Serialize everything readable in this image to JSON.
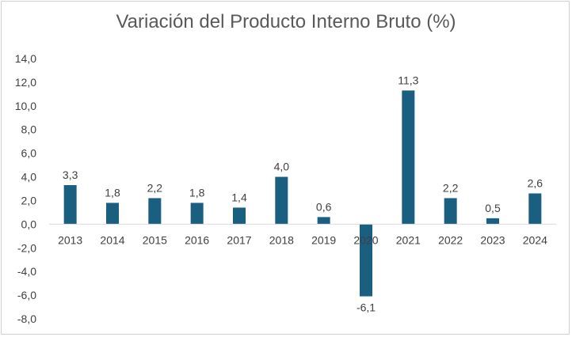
{
  "chart_data": {
    "type": "bar",
    "title": "Variación del Producto Interno Bruto (%)",
    "categories": [
      "2013",
      "2014",
      "2015",
      "2016",
      "2017",
      "2018",
      "2019",
      "2020",
      "2021",
      "2022",
      "2023",
      "2024"
    ],
    "values": [
      3.3,
      1.8,
      2.2,
      1.8,
      1.4,
      4.0,
      0.6,
      -6.1,
      11.3,
      2.2,
      0.5,
      2.6
    ],
    "data_labels": [
      "3,3",
      "1,8",
      "2,2",
      "1,8",
      "1,4",
      "4,0",
      "0,6",
      "-6,1",
      "11,3",
      "2,2",
      "0,5",
      "2,6"
    ],
    "ylim": [
      -8,
      14
    ],
    "yticks": [
      14,
      12,
      10,
      8,
      6,
      4,
      2,
      0,
      -2,
      -4,
      -6,
      -8
    ],
    "ytick_labels": [
      "14,0",
      "12,0",
      "10,0",
      "8,0",
      "6,0",
      "4,0",
      "2,0",
      "0,0",
      "-2,0",
      "-4,0",
      "-6,0",
      "-8,0"
    ],
    "grid": false,
    "legend": "none",
    "bar_color": "#1a5f80",
    "axis_color": "#d9d9d9"
  }
}
